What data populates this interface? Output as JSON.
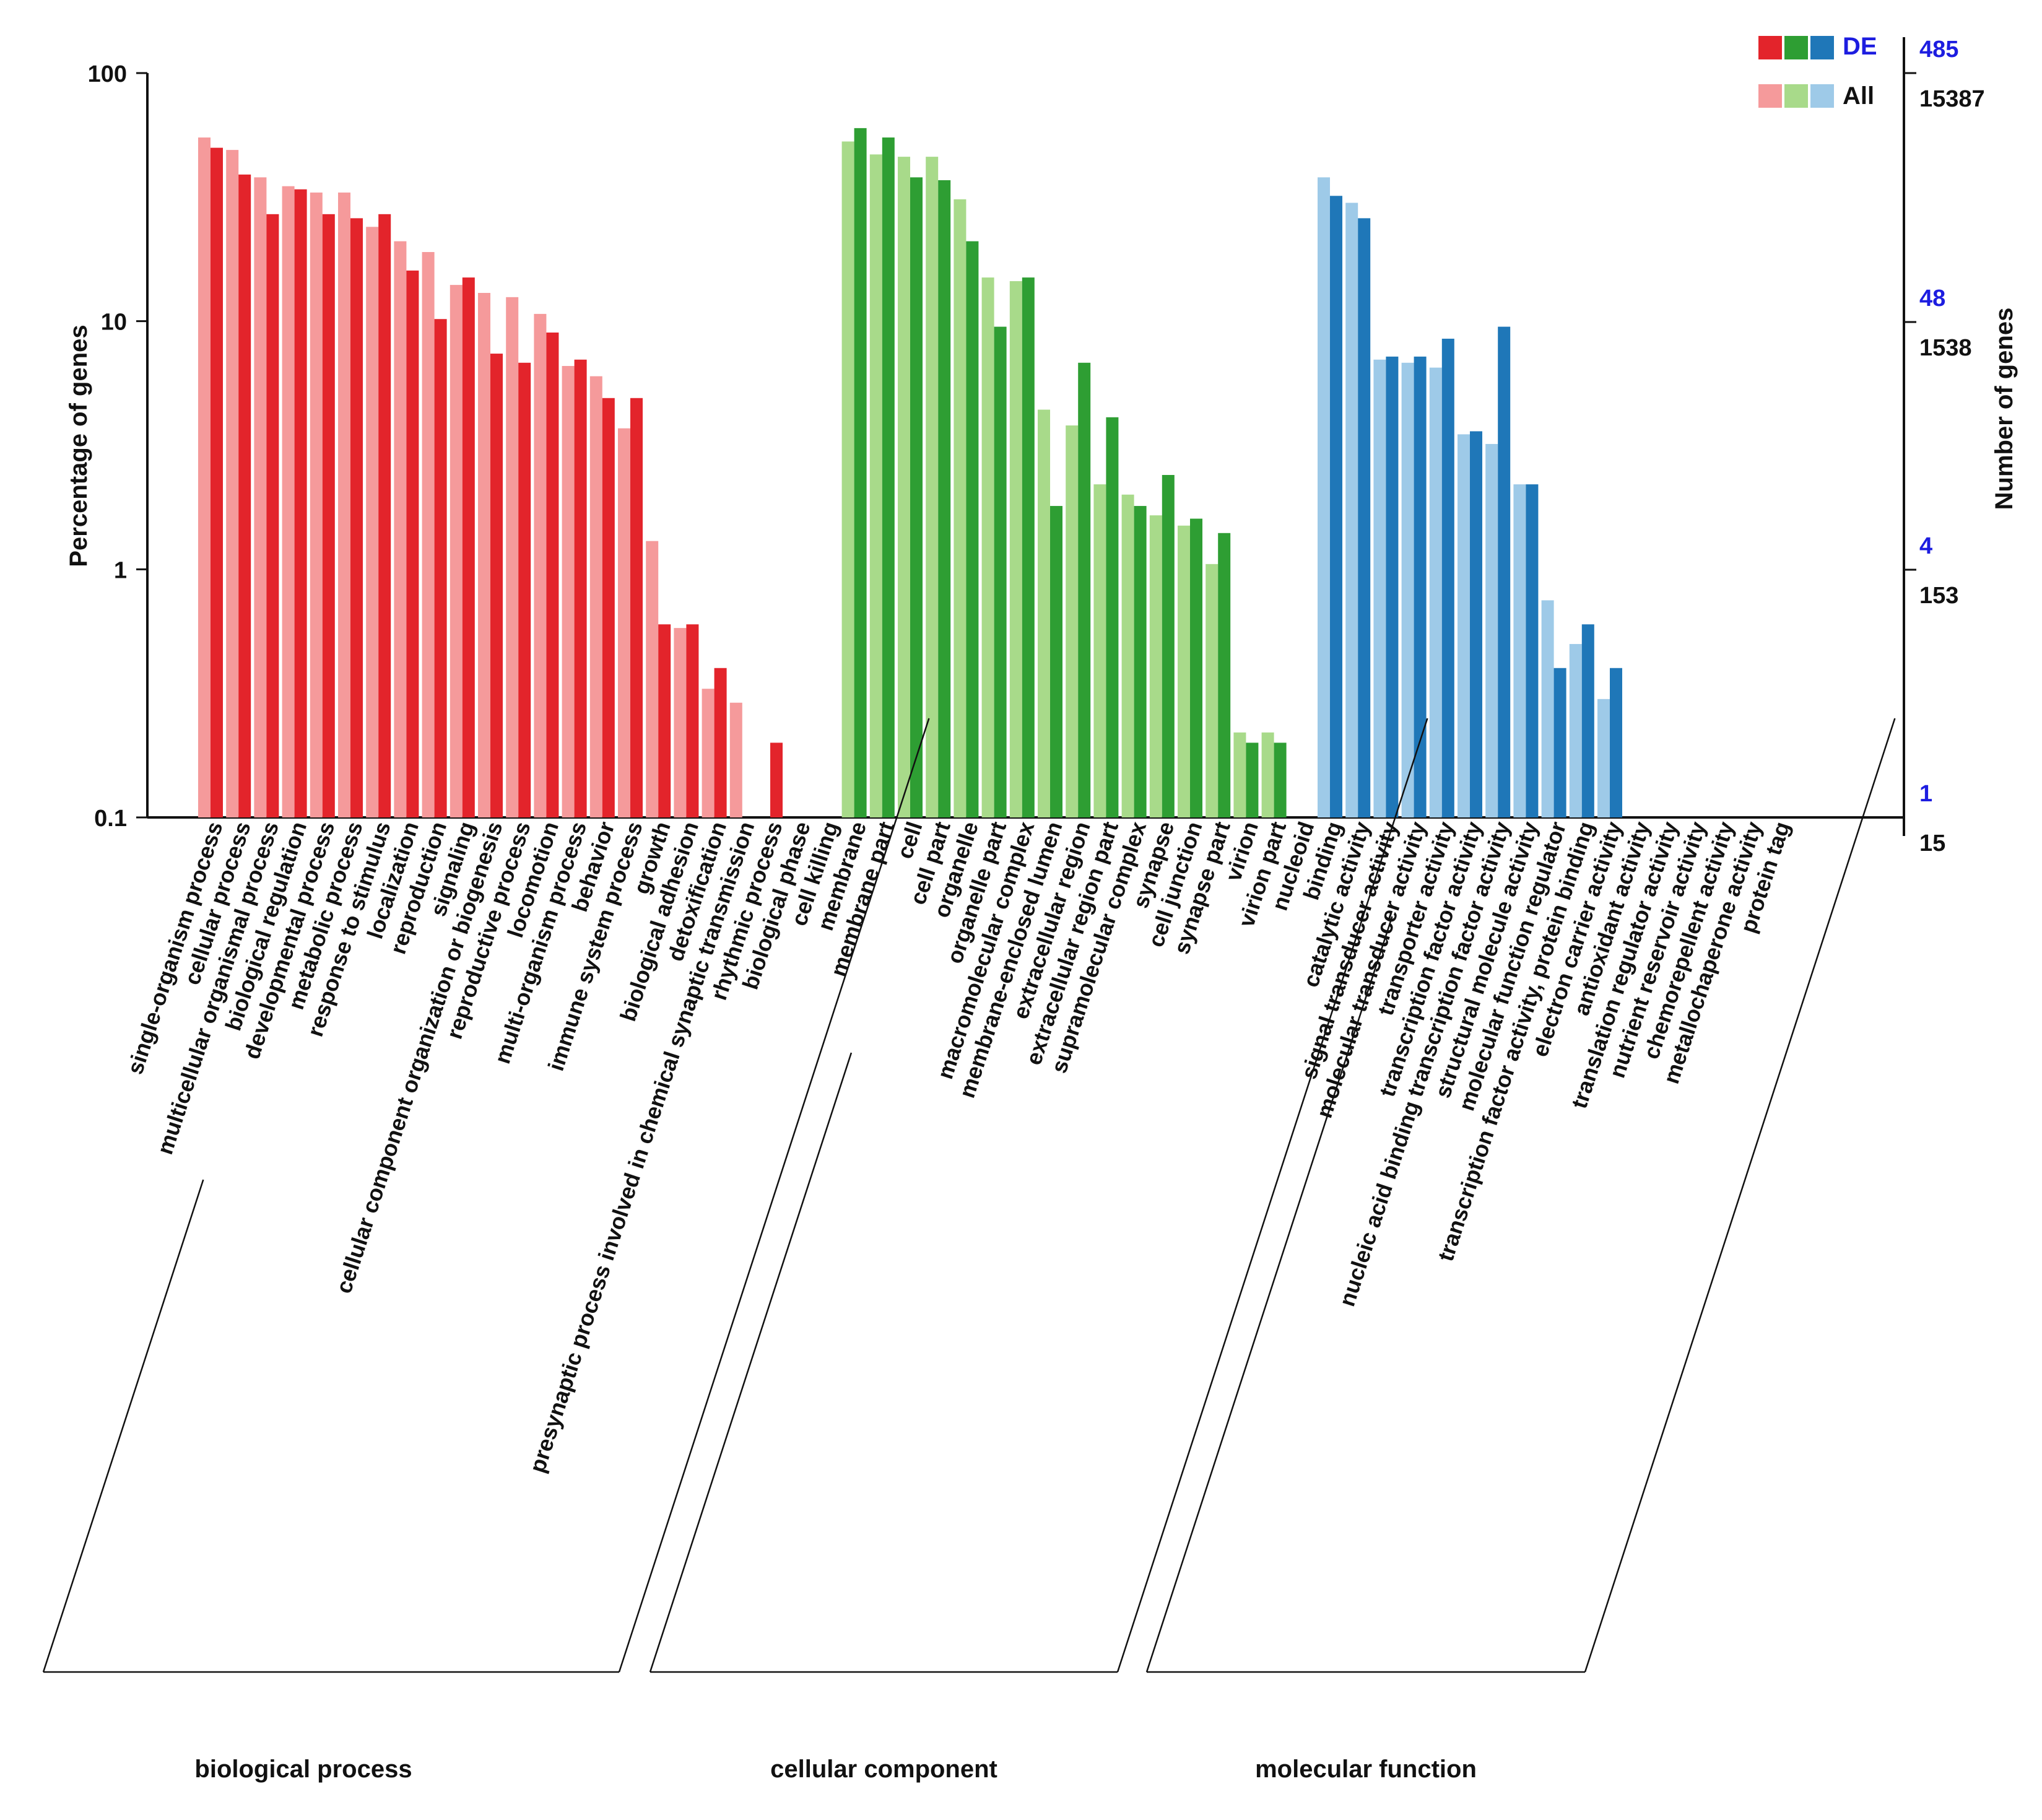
{
  "chart_data": {
    "type": "bar",
    "scale": "log",
    "ylabel_left": "Percentage of genes",
    "ylabel_right": "Number of genes",
    "ylim": [
      0.1,
      100
    ],
    "left_ticks": [
      "100",
      "10",
      "1",
      "0.1"
    ],
    "left_tick_values": [
      100,
      10,
      1,
      0.1
    ],
    "right_ticks_de": [
      "485",
      "48",
      "4",
      "1"
    ],
    "right_ticks_all": [
      "15387",
      "1538",
      "153",
      "15"
    ],
    "legend": {
      "de_label": "DE",
      "all_label": "All"
    },
    "colors": {
      "biological_process": {
        "de": "#e3242b",
        "all": "#f59a9b"
      },
      "cellular_component": {
        "de": "#2e9e33",
        "all": "#a8da8a"
      },
      "molecular_function": {
        "de": "#1f77b8",
        "all": "#9ecae8"
      }
    },
    "groups": [
      {
        "name": "biological process",
        "key": "biological_process",
        "categories": [
          {
            "label": "single-organism process",
            "all": 55,
            "de": 50
          },
          {
            "label": "cellular process",
            "all": 49,
            "de": 39
          },
          {
            "label": "multicellular organismal process",
            "all": 38,
            "de": 27
          },
          {
            "label": "biological regulation",
            "all": 35,
            "de": 34
          },
          {
            "label": "developmental process",
            "all": 33,
            "de": 27
          },
          {
            "label": "metabolic process",
            "all": 33,
            "de": 26
          },
          {
            "label": "response to stimulus",
            "all": 24,
            "de": 27
          },
          {
            "label": "localization",
            "all": 21,
            "de": 16
          },
          {
            "label": "reproduction",
            "all": 19,
            "de": 10.2
          },
          {
            "label": "signaling",
            "all": 14,
            "de": 15
          },
          {
            "label": "cellular component organization or biogenesis",
            "all": 13,
            "de": 7.4
          },
          {
            "label": "reproductive process",
            "all": 12.5,
            "de": 6.8
          },
          {
            "label": "locomotion",
            "all": 10.7,
            "de": 9
          },
          {
            "label": "multi-organism process",
            "all": 6.6,
            "de": 7
          },
          {
            "label": "behavior",
            "all": 6,
            "de": 4.9
          },
          {
            "label": "immune system process",
            "all": 3.7,
            "de": 4.9
          },
          {
            "label": "growth",
            "all": 1.3,
            "de": 0.6
          },
          {
            "label": "biological adhesion",
            "all": 0.58,
            "de": 0.6
          },
          {
            "label": "detoxification",
            "all": 0.33,
            "de": 0.4
          },
          {
            "label": "presynaptic process involved in chemical synaptic transmission",
            "all": 0.29,
            "de": null
          },
          {
            "label": "rhythmic process",
            "all": null,
            "de": 0.2
          },
          {
            "label": "biological phase",
            "all": null,
            "de": null
          },
          {
            "label": "cell killing",
            "all": null,
            "de": null
          }
        ]
      },
      {
        "name": "cellular component",
        "key": "cellular_component",
        "categories": [
          {
            "label": "membrane",
            "all": 53,
            "de": 60
          },
          {
            "label": "membrane part",
            "all": 47,
            "de": 55
          },
          {
            "label": "cell",
            "all": 46,
            "de": 38
          },
          {
            "label": "cell part",
            "all": 46,
            "de": 37
          },
          {
            "label": "organelle",
            "all": 31,
            "de": 21
          },
          {
            "label": "organelle part",
            "all": 15,
            "de": 9.5
          },
          {
            "label": "macromolecular complex",
            "all": 14.5,
            "de": 15
          },
          {
            "label": "membrane-enclosed lumen",
            "all": 4.4,
            "de": 1.8
          },
          {
            "label": "extracellular region",
            "all": 3.8,
            "de": 6.8
          },
          {
            "label": "extracellular region part",
            "all": 2.2,
            "de": 4.1
          },
          {
            "label": "supramolecular complex",
            "all": 2.0,
            "de": 1.8
          },
          {
            "label": "synapse",
            "all": 1.65,
            "de": 2.4
          },
          {
            "label": "cell junction",
            "all": 1.5,
            "de": 1.6
          },
          {
            "label": "synapse part",
            "all": 1.05,
            "de": 1.4
          },
          {
            "label": "virion",
            "all": 0.22,
            "de": 0.2
          },
          {
            "label": "virion part",
            "all": 0.22,
            "de": 0.2
          },
          {
            "label": "nucleoid",
            "all": null,
            "de": null
          }
        ]
      },
      {
        "name": "molecular function",
        "key": "molecular_function",
        "categories": [
          {
            "label": "binding",
            "all": 38,
            "de": 32
          },
          {
            "label": "catalytic activity",
            "all": 30,
            "de": 26
          },
          {
            "label": "signal transducer activity",
            "all": 7,
            "de": 7.2
          },
          {
            "label": "molecular transducer activity",
            "all": 6.8,
            "de": 7.2
          },
          {
            "label": "transporter activity",
            "all": 6.5,
            "de": 8.5
          },
          {
            "label": "transcription factor activity",
            "all": 3.5,
            "de": 3.6
          },
          {
            "label": "nucleic acid binding transcription factor activity",
            "all": 3.2,
            "de": 9.5
          },
          {
            "label": "structural molecule activity",
            "all": 2.2,
            "de": 2.2
          },
          {
            "label": "molecular function regulator",
            "all": 0.75,
            "de": 0.4
          },
          {
            "label": "transcription factor activity, protein binding",
            "all": 0.5,
            "de": 0.6
          },
          {
            "label": "electron carrier activity",
            "all": 0.3,
            "de": 0.4
          },
          {
            "label": "antioxidant activity",
            "all": null,
            "de": null
          },
          {
            "label": "translation regulator activity",
            "all": null,
            "de": null
          },
          {
            "label": "nutrient reservoir activity",
            "all": null,
            "de": null
          },
          {
            "label": "chemorepellent activity",
            "all": null,
            "de": null
          },
          {
            "label": "metallochaperone activity",
            "all": null,
            "de": null
          },
          {
            "label": "protein tag",
            "all": null,
            "de": null
          }
        ]
      }
    ]
  }
}
